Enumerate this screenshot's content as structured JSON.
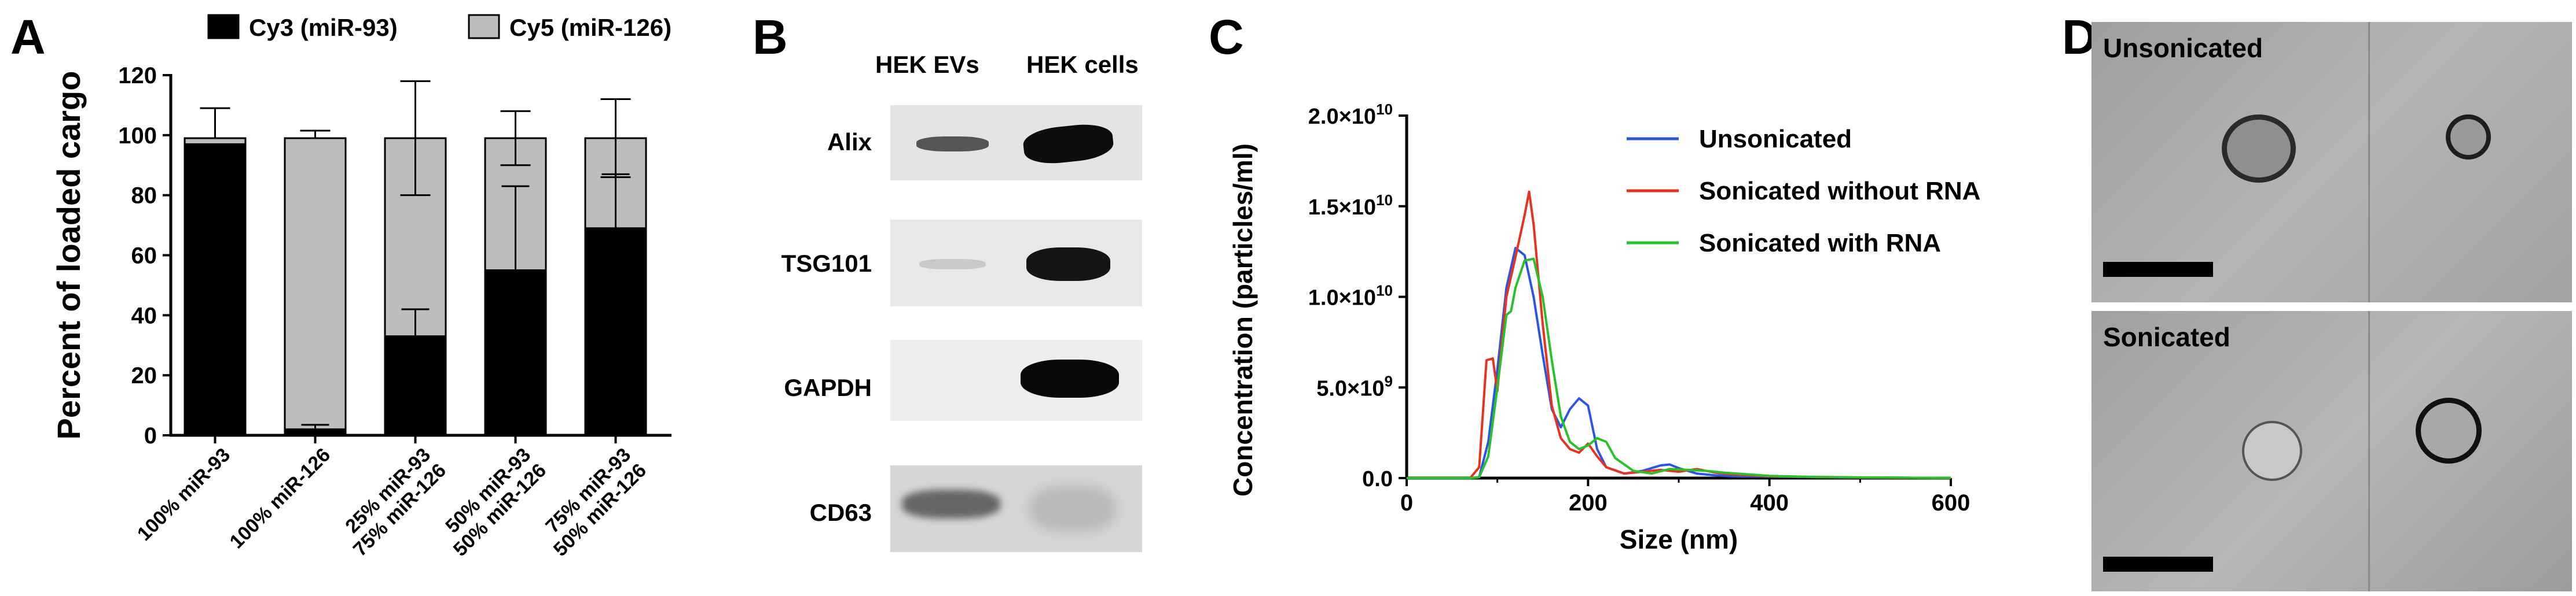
{
  "panels": {
    "a": "A",
    "b": "B",
    "c": "C",
    "d": "D"
  },
  "chart_data": [
    {
      "type": "bar",
      "stacked": true,
      "ylabel": "Percent of loaded cargo",
      "ylim": [
        0,
        120
      ],
      "yticks": [
        "0",
        "20",
        "40",
        "60",
        "80",
        "100",
        "120"
      ],
      "categories": [
        [
          "100% miR-93"
        ],
        [
          "100% miR-126"
        ],
        [
          "25% miR-93",
          "75% miR-126"
        ],
        [
          "50% miR-93",
          "50% miR-126"
        ],
        [
          "75% miR-93",
          "50% miR-126"
        ]
      ],
      "series": [
        {
          "name": "Cy3 (miR-93)",
          "color": "#000000",
          "values": [
            97,
            2,
            33,
            55,
            69
          ],
          "err": [
            0,
            1.5,
            9,
            28,
            18
          ]
        },
        {
          "name": "Cy5 (miR-126)",
          "color": "#bdbdbd",
          "values": [
            2,
            97,
            66,
            44,
            30
          ],
          "err": [
            10,
            2.5,
            19,
            9,
            13
          ]
        }
      ],
      "legend_position": "top"
    },
    {
      "type": "line",
      "xlabel": "Size (nm)",
      "ylabel": "Concentration (particles/ml)",
      "xlim": [
        0,
        600
      ],
      "ylim": [
        0,
        20000000000
      ],
      "xticks": [
        "0",
        "200",
        "400",
        "600"
      ],
      "yticks": [
        {
          "base": "0.0",
          "exp": ""
        },
        {
          "base": "5.0×10",
          "exp": "9"
        },
        {
          "base": "1.0×10",
          "exp": "10"
        },
        {
          "base": "1.5×10",
          "exp": "10"
        },
        {
          "base": "2.0×10",
          "exp": "10"
        }
      ],
      "legend_position": "top-right",
      "series": [
        {
          "name": "Unsonicated",
          "color": "#2b55e6",
          "x": [
            0,
            70,
            80,
            90,
            100,
            110,
            120,
            130,
            140,
            150,
            160,
            170,
            180,
            190,
            200,
            210,
            220,
            240,
            260,
            280,
            290,
            300,
            320,
            340,
            360,
            400,
            450,
            500,
            550,
            600
          ],
          "y": [
            0,
            0,
            50000000.0,
            2000000000.0,
            6000000000.0,
            10500000000.0,
            12700000000.0,
            12300000000.0,
            10000000000.0,
            6800000000.0,
            3800000000.0,
            2800000000.0,
            3800000000.0,
            4400000000.0,
            4000000000.0,
            1600000000.0,
            600000000.0,
            250000000.0,
            400000000.0,
            700000000.0,
            750000000.0,
            550000000.0,
            250000000.0,
            150000000.0,
            100000000.0,
            80000000.0,
            50000000.0,
            30000000.0,
            20000000.0,
            10000000.0
          ]
        },
        {
          "name": "Sonicated without RNA",
          "color": "#e8321f",
          "x": [
            0,
            70,
            80,
            88,
            95,
            100,
            105,
            110,
            120,
            130,
            135,
            140,
            150,
            160,
            170,
            180,
            190,
            200,
            210,
            220,
            240,
            260,
            280,
            300,
            320,
            340,
            360,
            400,
            450,
            500,
            550,
            600
          ],
          "y": [
            0,
            0,
            600000000.0,
            6500000000.0,
            6600000000.0,
            4800000000.0,
            7500000000.0,
            10000000000.0,
            12200000000.0,
            14500000000.0,
            15800000000.0,
            14000000000.0,
            8500000000.0,
            4000000000.0,
            2200000000.0,
            1600000000.0,
            1400000000.0,
            1900000000.0,
            1200000000.0,
            600000000.0,
            250000000.0,
            350000000.0,
            450000000.0,
            350000000.0,
            500000000.0,
            300000000.0,
            200000000.0,
            100000000.0,
            60000000.0,
            30000000.0,
            20000000.0,
            10000000.0
          ]
        },
        {
          "name": "Sonicated with RNA",
          "color": "#27c22b",
          "x": [
            0,
            70,
            80,
            90,
            100,
            110,
            115,
            120,
            130,
            140,
            150,
            160,
            170,
            180,
            190,
            200,
            210,
            220,
            230,
            250,
            270,
            290,
            310,
            330,
            350,
            400,
            450,
            500,
            550,
            600
          ],
          "y": [
            0,
            0,
            50000000.0,
            1200000000.0,
            5000000000.0,
            9000000000.0,
            9200000000.0,
            10500000000.0,
            12000000000.0,
            12100000000.0,
            10000000000.0,
            6500000000.0,
            3400000000.0,
            2000000000.0,
            1600000000.0,
            1800000000.0,
            2200000000.0,
            2000000000.0,
            1100000000.0,
            400000000.0,
            250000000.0,
            500000000.0,
            450000000.0,
            400000000.0,
            300000000.0,
            120000000.0,
            60000000.0,
            40000000.0,
            20000000.0,
            10000000.0
          ]
        }
      ]
    }
  ],
  "blot": {
    "columns": [
      "HEK EVs",
      "HEK cells"
    ],
    "rows": [
      "Alix",
      "TSG101",
      "GAPDH",
      "CD63"
    ]
  },
  "em": {
    "top_label": "Unsonicated",
    "bottom_label": "Sonicated"
  }
}
